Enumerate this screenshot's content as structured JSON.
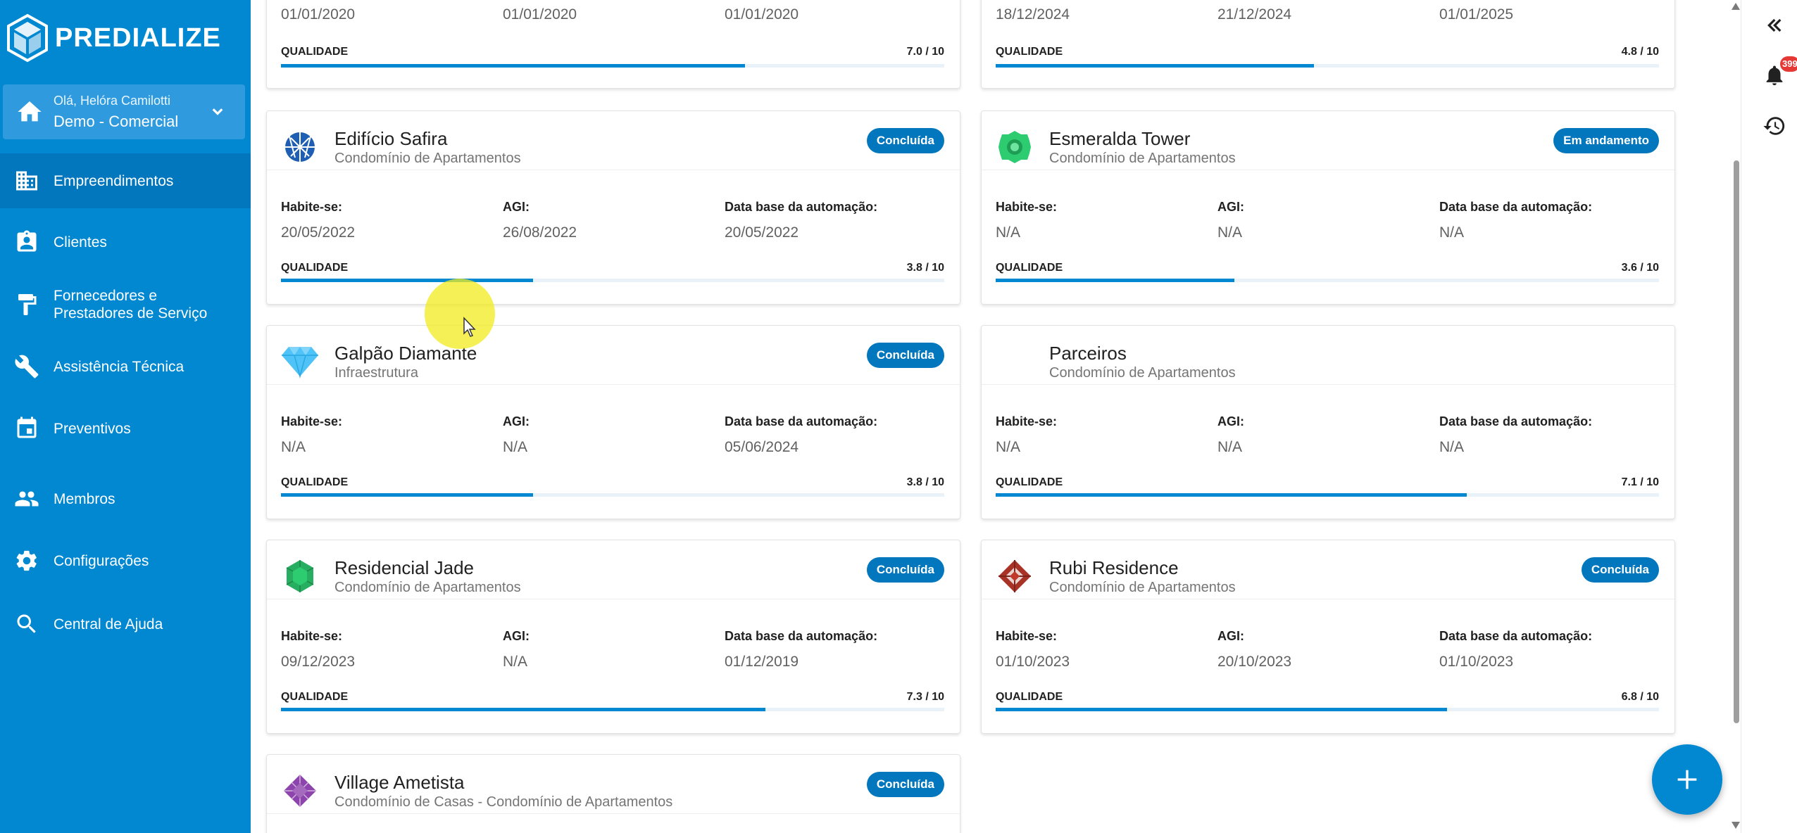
{
  "app": {
    "brand": "PREDIALIZE"
  },
  "user": {
    "greeting": "Olá, Helóra Camilotti",
    "org": "Demo - Comercial"
  },
  "nav": [
    {
      "label": "Empreendimentos",
      "icon": "building-icon",
      "active": true
    },
    {
      "label": "Clientes",
      "icon": "contact-card-icon"
    },
    {
      "label": "Fornecedores e",
      "label2": "Prestadores de Serviço",
      "icon": "paint-roller-icon"
    },
    {
      "label": "Assistência Técnica",
      "icon": "wrench-icon"
    },
    {
      "label": "Preventivos",
      "icon": "calendar-icon"
    },
    {
      "label": "Membros",
      "icon": "people-icon"
    },
    {
      "label": "Configurações",
      "icon": "gear-icon"
    },
    {
      "label": "Central de Ajuda",
      "icon": "search-icon"
    }
  ],
  "labels": {
    "habite": "Habite-se:",
    "agi": "AGI:",
    "database": "Data base da automação:",
    "quality": "QUALIDADE"
  },
  "partial_cards": [
    {
      "values": [
        "01/01/2020",
        "01/01/2020",
        "01/01/2020"
      ],
      "score": "7.0 / 10",
      "quality": 0.7
    },
    {
      "values": [
        "18/12/2024",
        "21/12/2024",
        "01/01/2025"
      ],
      "score": "4.8 / 10",
      "quality": 0.48
    }
  ],
  "cards": [
    {
      "title": "Edifício Safira",
      "subtitle": "Condomínio de Apartamentos",
      "status": "Concluída",
      "icon": "sapphire-gem-icon",
      "habite": "20/05/2022",
      "agi": "26/08/2022",
      "database": "20/05/2022",
      "score": "3.8 / 10",
      "quality": 0.38
    },
    {
      "title": "Esmeralda Tower",
      "subtitle": "Condomínio de Apartamentos",
      "status": "Em andamento",
      "icon": "emerald-gem-icon",
      "habite": "N/A",
      "agi": "N/A",
      "database": "N/A",
      "score": "3.6 / 10",
      "quality": 0.36
    },
    {
      "title": "Galpão Diamante",
      "subtitle": "Infraestrutura",
      "status": "Concluída",
      "icon": "diamond-icon",
      "habite": "N/A",
      "agi": "N/A",
      "database": "05/06/2024",
      "score": "3.8 / 10",
      "quality": 0.38
    },
    {
      "title": "Parceiros",
      "subtitle": "Condomínio de Apartamentos",
      "status": "",
      "icon": "",
      "habite": "N/A",
      "agi": "N/A",
      "database": "N/A",
      "score": "7.1 / 10",
      "quality": 0.71
    },
    {
      "title": "Residencial Jade",
      "subtitle": "Condomínio de Apartamentos",
      "status": "Concluída",
      "icon": "jade-gem-icon",
      "habite": "09/12/2023",
      "agi": "N/A",
      "database": "01/12/2019",
      "score": "7.3 / 10",
      "quality": 0.73
    },
    {
      "title": "Rubi Residence",
      "subtitle": "Condomínio de Apartamentos",
      "status": "Concluída",
      "icon": "ruby-gem-icon",
      "habite": "01/10/2023",
      "agi": "20/10/2023",
      "database": "01/10/2023",
      "score": "6.8 / 10",
      "quality": 0.68
    },
    {
      "title": "Village Ametista",
      "subtitle": "Condomínio de Casas - Condomínio de Apartamentos",
      "status": "Concluída",
      "icon": "amethyst-gem-icon"
    }
  ],
  "notifications": {
    "count": "399"
  },
  "colors": {
    "sidebar": "#0288d1",
    "accent": "#0277bd",
    "progress": "#0288d1"
  }
}
